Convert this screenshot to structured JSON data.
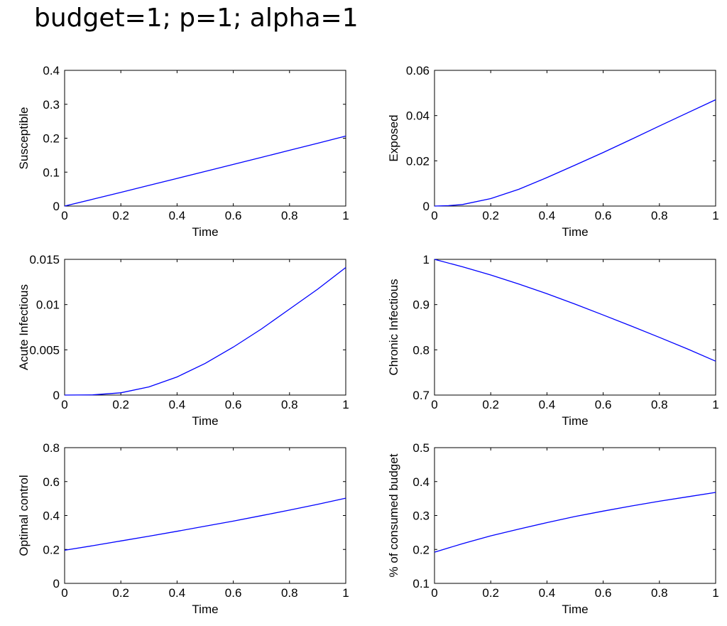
{
  "title": "budget=1; p=1; alpha=1",
  "chart_data": [
    {
      "type": "line",
      "ylabel": "Susceptible",
      "xlabel": "Time",
      "xlim": [
        0,
        1
      ],
      "ylim": [
        0,
        0.4
      ],
      "xticks": [
        0,
        0.2,
        0.4,
        0.6,
        0.8,
        1
      ],
      "xtick_labels": [
        "0",
        "0.2",
        "0.4",
        "0.6",
        "0.8",
        "1"
      ],
      "yticks": [
        0,
        0.1,
        0.2,
        0.3,
        0.4
      ],
      "ytick_labels": [
        "0",
        "0.1",
        "0.2",
        "0.3",
        "0.4"
      ],
      "line_color": "#0000ff",
      "x": [
        0,
        0.1,
        0.2,
        0.3,
        0.4,
        0.5,
        0.6,
        0.7,
        0.8,
        0.9,
        1.0
      ],
      "y": [
        0,
        0.0202,
        0.0405,
        0.0609,
        0.0815,
        0.1021,
        0.1228,
        0.1435,
        0.1643,
        0.1852,
        0.2062
      ]
    },
    {
      "type": "line",
      "ylabel": "Exposed",
      "xlabel": "Time",
      "xlim": [
        0,
        1
      ],
      "ylim": [
        0,
        0.06
      ],
      "xticks": [
        0,
        0.2,
        0.4,
        0.6,
        0.8,
        1
      ],
      "xtick_labels": [
        "0",
        "0.2",
        "0.4",
        "0.6",
        "0.8",
        "1"
      ],
      "yticks": [
        0,
        0.02,
        0.04,
        0.06
      ],
      "ytick_labels": [
        "0",
        "0.02",
        "0.04",
        "0.06"
      ],
      "line_color": "#0000ff",
      "x": [
        0,
        0.05,
        0.1,
        0.2,
        0.3,
        0.4,
        0.5,
        0.6,
        0.7,
        0.8,
        0.9,
        1.0
      ],
      "y": [
        0,
        0.0002,
        0.0007,
        0.0033,
        0.0074,
        0.0126,
        0.0181,
        0.0237,
        0.0295,
        0.0354,
        0.0412,
        0.047
      ]
    },
    {
      "type": "line",
      "ylabel": "Acute Infectious",
      "xlabel": "Time",
      "xlim": [
        0,
        1
      ],
      "ylim": [
        0,
        0.015
      ],
      "xticks": [
        0,
        0.2,
        0.4,
        0.6,
        0.8,
        1
      ],
      "xtick_labels": [
        "0",
        "0.2",
        "0.4",
        "0.6",
        "0.8",
        "1"
      ],
      "yticks": [
        0,
        0.005,
        0.01,
        0.015
      ],
      "ytick_labels": [
        "0",
        "0.005",
        "0.01",
        "0.015"
      ],
      "line_color": "#0000ff",
      "x": [
        0,
        0.1,
        0.2,
        0.3,
        0.4,
        0.5,
        0.6,
        0.7,
        0.8,
        0.9,
        1.0
      ],
      "y": [
        0,
        2e-05,
        0.00025,
        0.0009,
        0.002,
        0.0035,
        0.0053,
        0.0073,
        0.0095,
        0.0117,
        0.0141
      ]
    },
    {
      "type": "line",
      "ylabel": "Chronic Infectious",
      "xlabel": "Time",
      "xlim": [
        0,
        1
      ],
      "ylim": [
        0.7,
        1
      ],
      "xticks": [
        0,
        0.2,
        0.4,
        0.6,
        0.8,
        1
      ],
      "xtick_labels": [
        "0",
        "0.2",
        "0.4",
        "0.6",
        "0.8",
        "1"
      ],
      "yticks": [
        0.7,
        0.8,
        0.9,
        1
      ],
      "ytick_labels": [
        "0.7",
        "0.8",
        "0.9",
        "1"
      ],
      "line_color": "#0000ff",
      "x": [
        0,
        0.1,
        0.2,
        0.3,
        0.4,
        0.5,
        0.6,
        0.7,
        0.8,
        0.9,
        1.0
      ],
      "y": [
        1.0,
        0.9835,
        0.9655,
        0.9455,
        0.924,
        0.901,
        0.877,
        0.8525,
        0.8275,
        0.802,
        0.775
      ]
    },
    {
      "type": "line",
      "ylabel": "Optimal control",
      "xlabel": "Time",
      "xlim": [
        0,
        1
      ],
      "ylim": [
        0,
        0.8
      ],
      "xticks": [
        0,
        0.2,
        0.4,
        0.6,
        0.8,
        1
      ],
      "xtick_labels": [
        "0",
        "0.2",
        "0.4",
        "0.6",
        "0.8",
        "1"
      ],
      "yticks": [
        0,
        0.2,
        0.4,
        0.6,
        0.8
      ],
      "ytick_labels": [
        "0",
        "0.2",
        "0.4",
        "0.6",
        "0.8"
      ],
      "line_color": "#0000ff",
      "x": [
        0,
        0.1,
        0.2,
        0.3,
        0.4,
        0.5,
        0.6,
        0.7,
        0.8,
        0.9,
        1.0
      ],
      "y": [
        0.195,
        0.222,
        0.25,
        0.278,
        0.307,
        0.337,
        0.367,
        0.399,
        0.432,
        0.466,
        0.502
      ]
    },
    {
      "type": "line",
      "ylabel": "% of consumed budget",
      "xlabel": "Time",
      "xlim": [
        0,
        1
      ],
      "ylim": [
        0.1,
        0.5
      ],
      "xticks": [
        0,
        0.2,
        0.4,
        0.6,
        0.8,
        1
      ],
      "xtick_labels": [
        "0",
        "0.2",
        "0.4",
        "0.6",
        "0.8",
        "1"
      ],
      "yticks": [
        0.1,
        0.2,
        0.3,
        0.4,
        0.5
      ],
      "ytick_labels": [
        "0.1",
        "0.2",
        "0.3",
        "0.4",
        "0.5"
      ],
      "line_color": "#0000ff",
      "x": [
        0,
        0.1,
        0.2,
        0.3,
        0.4,
        0.5,
        0.6,
        0.7,
        0.8,
        0.9,
        1.0
      ],
      "y": [
        0.192,
        0.217,
        0.24,
        0.26,
        0.279,
        0.297,
        0.313,
        0.328,
        0.342,
        0.355,
        0.368
      ]
    }
  ]
}
